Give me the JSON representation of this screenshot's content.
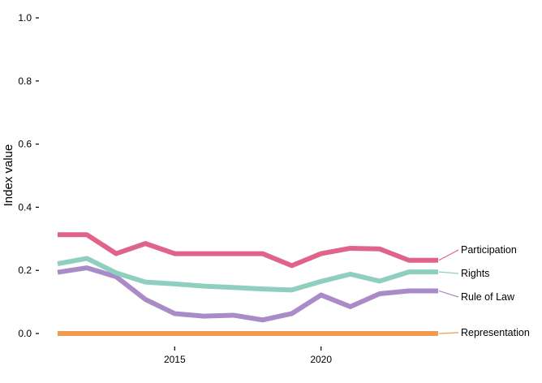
{
  "chart_data": {
    "type": "line",
    "title": "",
    "xlabel": "",
    "ylabel": "Index value",
    "xlim": [
      2011,
      2024
    ],
    "ylim": [
      0,
      1
    ],
    "x_ticks": [
      2015,
      2020
    ],
    "y_ticks": [
      "0.0",
      "0.2",
      "0.4",
      "0.6",
      "0.8",
      "1.0"
    ],
    "grid": false,
    "legend": "direct labels at right end of lines",
    "x": [
      2011,
      2012,
      2013,
      2014,
      2015,
      2016,
      2017,
      2018,
      2019,
      2020,
      2021,
      2022,
      2023,
      2024
    ],
    "series": [
      {
        "name": "Participation",
        "color": "#e0648a",
        "values": [
          0.313,
          0.313,
          0.253,
          0.285,
          0.253,
          0.253,
          0.253,
          0.253,
          0.215,
          0.253,
          0.27,
          0.268,
          0.232,
          0.232
        ]
      },
      {
        "name": "Rights",
        "color": "#8ecfc0",
        "values": [
          0.221,
          0.238,
          0.192,
          0.163,
          0.157,
          0.15,
          0.146,
          0.141,
          0.138,
          0.165,
          0.188,
          0.166,
          0.195,
          0.195
        ]
      },
      {
        "name": "Rule of Law",
        "color": "#a98bc7",
        "values": [
          0.194,
          0.208,
          0.18,
          0.108,
          0.063,
          0.055,
          0.058,
          0.043,
          0.063,
          0.122,
          0.085,
          0.126,
          0.135,
          0.135
        ]
      },
      {
        "name": "Representation",
        "color": "#f39a51",
        "values": [
          0.0,
          0.0,
          0.0,
          0.0,
          0.0,
          0.0,
          0.0,
          0.0,
          0.0,
          0.0,
          0.0,
          0.0,
          0.0,
          0.0
        ]
      }
    ]
  }
}
